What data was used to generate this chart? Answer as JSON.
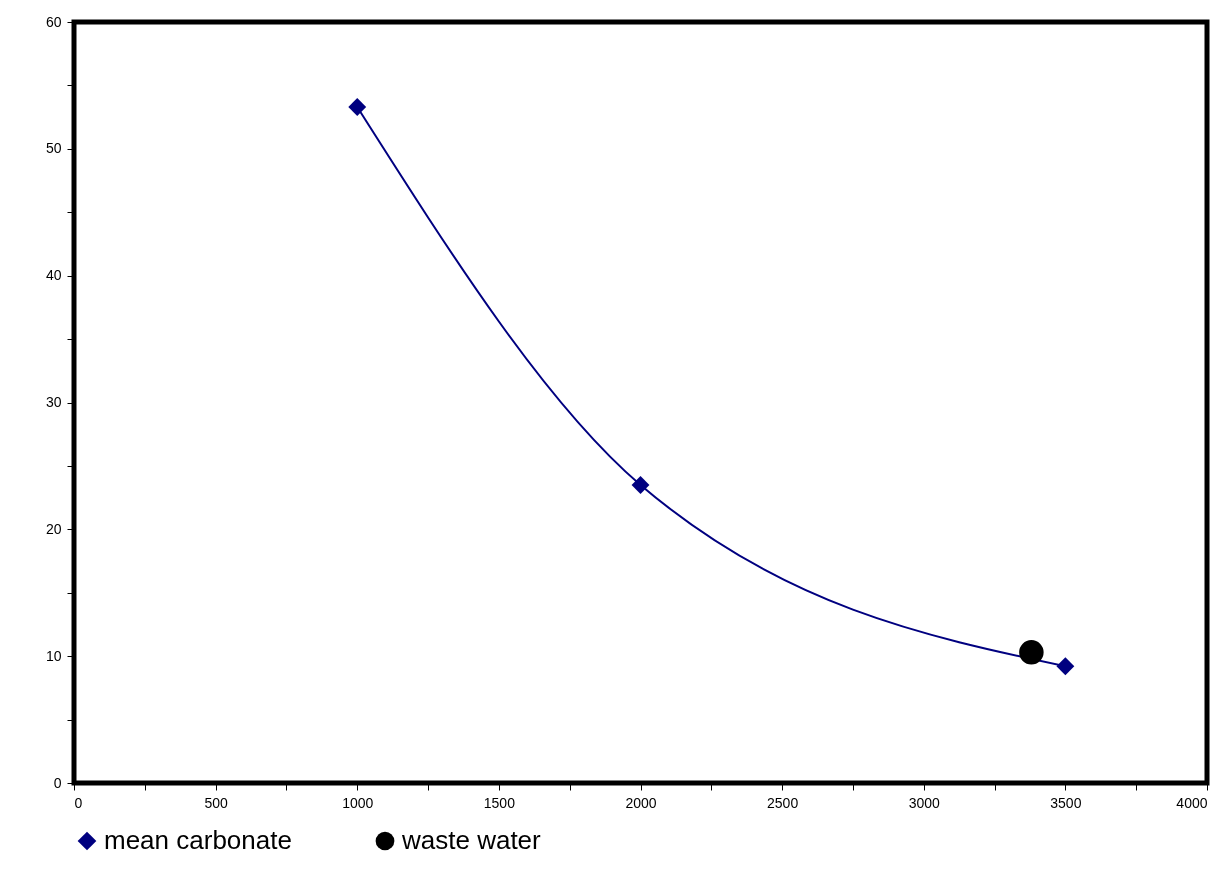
{
  "chart_data": {
    "type": "line",
    "series": [
      {
        "name": "mean carbonate",
        "color": "#000080",
        "marker": "diamond",
        "x": [
          1000,
          2000,
          3500
        ],
        "values": [
          53.3,
          23.5,
          9.2
        ]
      },
      {
        "name": "waste water",
        "color": "#000000",
        "marker": "circle",
        "type": "scatter",
        "x": [
          3380
        ],
        "values": [
          10.3
        ]
      }
    ],
    "xlim": [
      0,
      4000
    ],
    "ylim": [
      0,
      60
    ],
    "xticks": [
      0,
      {
        "value": 250,
        "label": null
      },
      500,
      {
        "value": 750,
        "label": null
      },
      1000,
      {
        "value": 1250,
        "label": null
      },
      1500,
      {
        "value": 1750,
        "label": null
      },
      2000,
      {
        "value": 2250,
        "label": null
      },
      2500,
      {
        "value": 2750,
        "label": null
      },
      3000,
      {
        "value": 3250,
        "label": null
      },
      3500,
      {
        "value": 3750,
        "label": null
      },
      4000
    ],
    "yticks": [
      0,
      {
        "value": 5,
        "label": null
      },
      10,
      {
        "value": 15,
        "label": null
      },
      20,
      {
        "value": 25,
        "label": null
      },
      30,
      {
        "value": 35,
        "label": null
      },
      40,
      {
        "value": 45,
        "label": null
      },
      50,
      {
        "value": 55,
        "label": null
      },
      60
    ],
    "grid": false,
    "legend": "bottom"
  }
}
